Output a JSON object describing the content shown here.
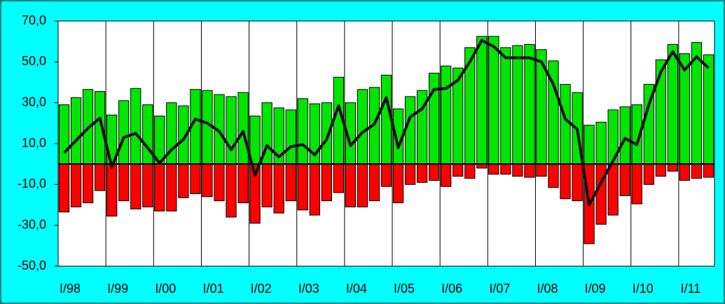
{
  "chart_data": {
    "type": "bar",
    "categories": [
      "I/98",
      null,
      null,
      null,
      "I/99",
      null,
      null,
      null,
      "I/00",
      null,
      null,
      null,
      "I/01",
      null,
      null,
      null,
      "I/02",
      null,
      null,
      null,
      "I/03",
      null,
      null,
      null,
      "I/04",
      null,
      null,
      null,
      "I/05",
      null,
      null,
      null,
      "I/06",
      null,
      null,
      null,
      "I/07",
      null,
      null,
      null,
      "I/08",
      null,
      null,
      null,
      "I/09",
      null,
      null,
      null,
      "I/10",
      null,
      null,
      null,
      "I/11",
      null,
      null
    ],
    "series": [
      {
        "type": "bar",
        "color": "#00e600",
        "values": [
          29,
          32.5,
          36.5,
          35.5,
          24,
          31,
          37,
          29,
          23.5,
          30,
          28.5,
          36.5,
          36,
          34,
          33,
          35,
          23.5,
          30,
          27.5,
          26.5,
          32,
          29.5,
          30,
          42.5,
          30,
          36.5,
          37.5,
          43.5,
          27,
          33,
          36,
          44.5,
          48,
          47,
          57,
          62.5,
          62.5,
          57,
          58,
          58.5,
          56,
          50.5,
          39,
          35,
          19,
          20.5,
          26.5,
          28,
          29,
          39,
          51,
          58.5,
          54,
          59.5,
          53.5
        ]
      },
      {
        "type": "bar",
        "color": "#ff0000",
        "values": [
          -23.5,
          -21,
          -19,
          -13,
          -25.5,
          -18,
          -22,
          -21,
          -23,
          -23,
          -16.5,
          -14.5,
          -16,
          -18,
          -26,
          -19,
          -29,
          -21,
          -24,
          -18,
          -22.5,
          -25,
          -18,
          -14,
          -21,
          -21,
          -18,
          -11,
          -19,
          -10,
          -9,
          -8,
          -11,
          -6,
          -7,
          -2,
          -5,
          -5,
          -6,
          -6.5,
          -6,
          -11.5,
          -17,
          -18,
          -39,
          -29.5,
          -25,
          -15.5,
          -19.5,
          -10,
          -6,
          -3.5,
          -8,
          -7,
          -6.5
        ]
      },
      {
        "type": "line",
        "color": "#111111",
        "values": [
          5.5,
          11.5,
          17.5,
          22.5,
          -1.5,
          13,
          15,
          8,
          0.5,
          7,
          12,
          22,
          20,
          16,
          7,
          16,
          -5.5,
          9,
          3.5,
          8.5,
          9.5,
          4.5,
          12,
          28.5,
          9,
          15.5,
          19.5,
          32.5,
          8,
          23,
          27,
          36.5,
          37,
          41,
          50,
          60.5,
          57.5,
          52,
          52,
          52,
          50,
          39,
          22,
          17,
          -20,
          -9,
          1.5,
          12.5,
          9.5,
          29,
          45,
          55,
          46,
          52.5,
          47
        ]
      }
    ],
    "ylim": [
      -50,
      70
    ],
    "yticks": [
      {
        "value": 70,
        "label": "70,0"
      },
      {
        "value": 50,
        "label": "50,0"
      },
      {
        "value": 30,
        "label": "30,0"
      },
      {
        "value": 10,
        "label": "10,0"
      },
      {
        "value": -10,
        "label": "-10,0"
      },
      {
        "value": -30,
        "label": "-30,0"
      },
      {
        "value": -50,
        "label": "-50,0"
      }
    ]
  }
}
